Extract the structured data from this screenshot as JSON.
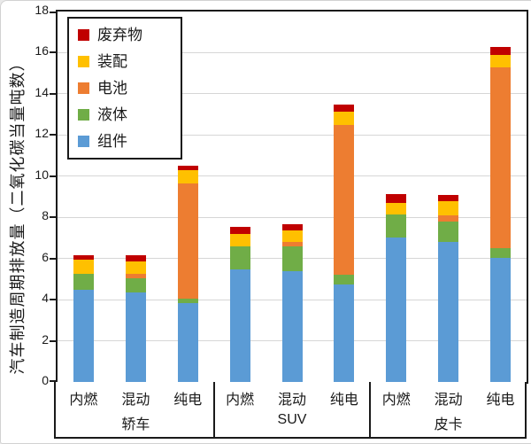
{
  "colors": {
    "axis": "#1a1a1a",
    "gridline": "#d6d6d6",
    "background": "#ffffff"
  },
  "legend": {
    "items": [
      {
        "label": "废弃物",
        "color": "#C00000"
      },
      {
        "label": "装配",
        "color": "#FFC000"
      },
      {
        "label": "电池",
        "color": "#ED7D31"
      },
      {
        "label": "液体",
        "color": "#70AD47"
      },
      {
        "label": "组件",
        "color": "#5B9BD5"
      }
    ]
  },
  "chart_data": {
    "type": "bar",
    "stacked": true,
    "title": "",
    "xlabel": "",
    "ylabel": "汽车制造周期排放量（二氧化碳当量吨数）",
    "ylim": [
      0,
      18
    ],
    "yticks": [
      0,
      2,
      4,
      6,
      8,
      10,
      12,
      14,
      16,
      18
    ],
    "grid": "horizontal",
    "legend_position": "upper-left-inside",
    "groups": [
      "轿车",
      "SUV",
      "皮卡"
    ],
    "categories_per_group": [
      "内燃",
      "混动",
      "纯电"
    ],
    "bar_labels": [
      "轿车-内燃",
      "轿车-混动",
      "轿车-纯电",
      "SUV-内燃",
      "SUV-混动",
      "SUV-纯电",
      "皮卡-内燃",
      "皮卡-混动",
      "皮卡-纯电"
    ],
    "series": [
      {
        "name": "组件",
        "color": "#5B9BD5",
        "values": [
          4.5,
          4.35,
          3.85,
          5.45,
          5.4,
          4.75,
          7.0,
          6.8,
          6.05
        ]
      },
      {
        "name": "液体",
        "color": "#70AD47",
        "values": [
          0.75,
          0.7,
          0.2,
          1.15,
          1.2,
          0.45,
          1.15,
          1.0,
          0.45
        ]
      },
      {
        "name": "电池",
        "color": "#ED7D31",
        "values": [
          0,
          0.2,
          5.6,
          0,
          0.2,
          7.3,
          0,
          0.3,
          8.8
        ]
      },
      {
        "name": "装配",
        "color": "#FFC000",
        "values": [
          0.7,
          0.6,
          0.65,
          0.6,
          0.55,
          0.65,
          0.55,
          0.7,
          0.6
        ]
      },
      {
        "name": "废弃物",
        "color": "#C00000",
        "values": [
          0.2,
          0.3,
          0.2,
          0.35,
          0.3,
          0.35,
          0.45,
          0.3,
          0.4
        ]
      }
    ],
    "totals": [
      6.15,
      6.15,
      10.5,
      7.55,
      7.65,
      13.5,
      9.15,
      9.1,
      16.3
    ]
  }
}
